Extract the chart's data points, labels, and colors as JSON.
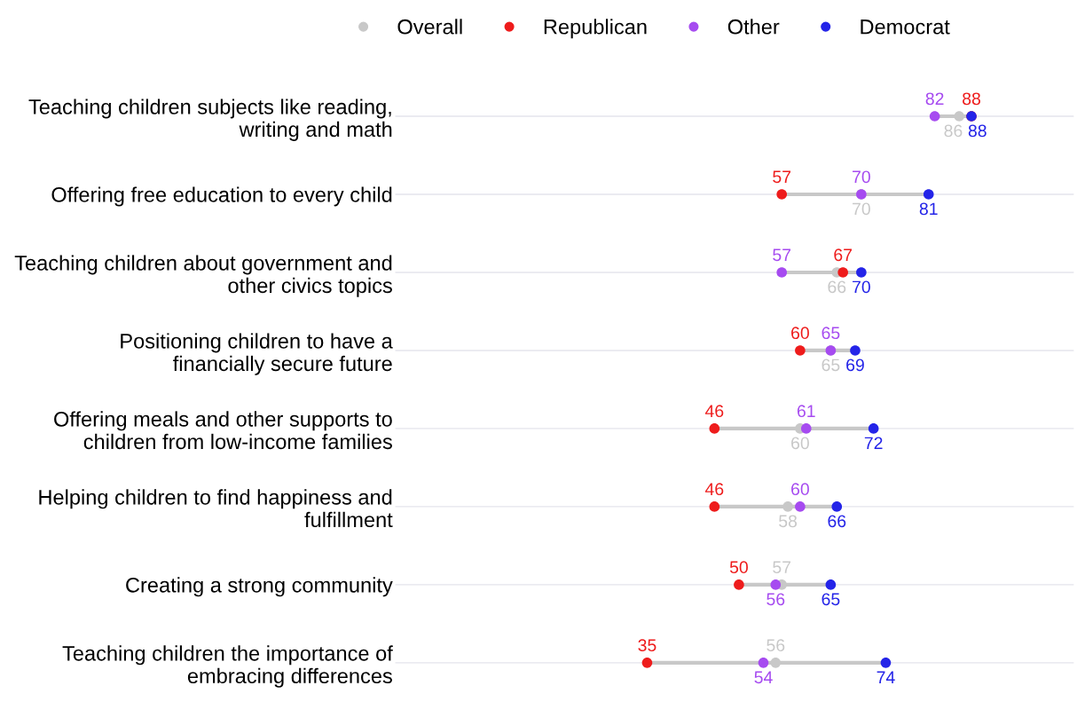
{
  "chart_data": {
    "type": "scatter",
    "orientation": "horizontal",
    "legend": "top",
    "marker": "circle",
    "grid": "y",
    "data_labels": true,
    "tick_labels": "y",
    "categories": [
      "Teaching children subjects like reading,\nwriting and math",
      "Offering free education to every child",
      "Teaching children about government and\nother civics topics",
      "Positioning children to have a\nfinancially secure future",
      "Offering meals and other supports to\nchildren from low-income families",
      "Helping children to find happiness and\nfulfillment",
      "Creating a strong community",
      "Teaching children the importance of\nembracing differences"
    ],
    "series": [
      {
        "name": "Overall",
        "color": "#c8c8c8",
        "values": [
          86,
          70,
          66,
          65,
          60,
          58,
          57,
          56
        ]
      },
      {
        "name": "Republican",
        "color": "#ee1c1c",
        "values": [
          88,
          57,
          67,
          60,
          46,
          46,
          50,
          35
        ]
      },
      {
        "name": "Other",
        "color": "#a64bf0",
        "values": [
          82,
          70,
          57,
          65,
          61,
          60,
          56,
          54
        ]
      },
      {
        "name": "Democrat",
        "color": "#2424e8",
        "values": [
          88,
          81,
          70,
          69,
          72,
          66,
          65,
          74
        ]
      }
    ]
  }
}
